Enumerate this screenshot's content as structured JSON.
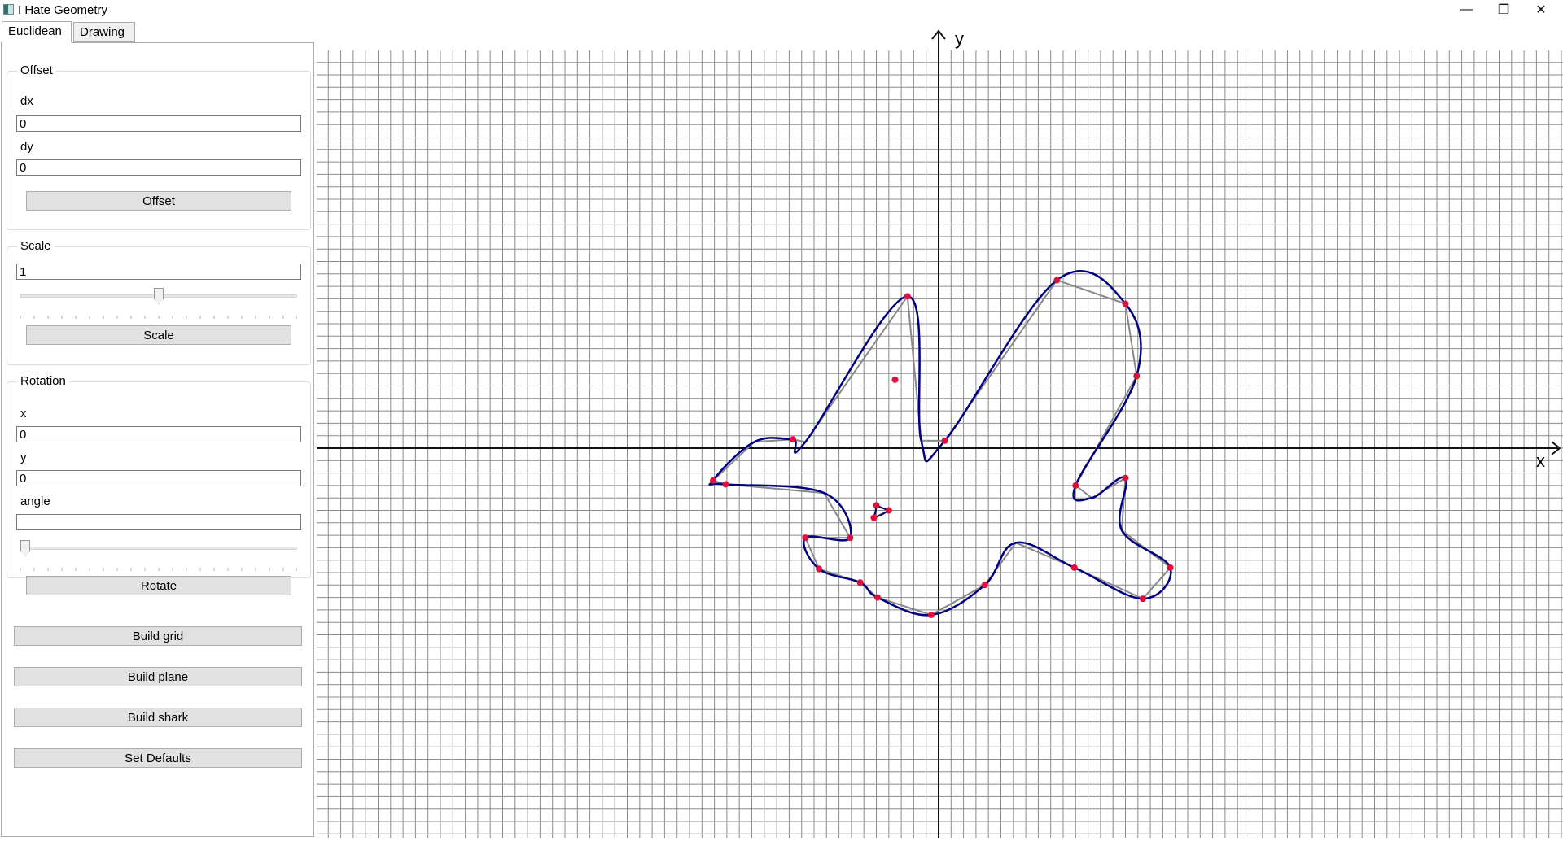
{
  "window": {
    "title": "I Hate Geometry",
    "minimize_glyph": "—",
    "maximize_glyph": "❐",
    "close_glyph": "✕"
  },
  "tabs": [
    {
      "label": "Euclidean",
      "active": true
    },
    {
      "label": "Drawing",
      "active": false
    }
  ],
  "offset": {
    "title": "Offset",
    "dx_label": "dx",
    "dx_value": "0",
    "dy_label": "dy",
    "dy_value": "0",
    "button": "Offset"
  },
  "scale": {
    "title": "Scale",
    "value": "1",
    "slider_fraction": 0.5,
    "button": "Scale"
  },
  "rotation": {
    "title": "Rotation",
    "x_label": "x",
    "x_value": "0",
    "y_label": "y",
    "y_value": "0",
    "angle_label": "angle",
    "angle_value": "",
    "slider_fraction": 0.0,
    "button": "Rotate"
  },
  "actions": {
    "build_grid": "Build grid",
    "build_plane": "Build plane",
    "build_shark": "Build shark",
    "set_defaults": "Set Defaults"
  },
  "canvas": {
    "x_axis_label": "x",
    "y_axis_label": "y",
    "colors": {
      "grid": "#8c8c8c",
      "axis": "#111111",
      "control_polygon": "#888888",
      "curve": "#000080",
      "points": "#e0103a"
    },
    "control_points": [
      [
        -2.5,
        12.2
      ],
      [
        0.5,
        0.6
      ],
      [
        -3.5,
        5.5
      ],
      [
        9.5,
        13.5
      ],
      [
        15.0,
        11.6
      ],
      [
        15.9,
        5.8
      ],
      [
        11.0,
        -3.0
      ],
      [
        15.0,
        -2.4
      ],
      [
        18.6,
        -9.6
      ],
      [
        16.4,
        -12.1
      ],
      [
        10.9,
        -9.6
      ],
      [
        3.7,
        -11.0
      ],
      [
        -0.6,
        -13.4
      ],
      [
        -4.9,
        -12.0
      ],
      [
        -6.3,
        -10.8
      ],
      [
        -9.6,
        -9.7
      ],
      [
        -10.7,
        -7.2
      ],
      [
        -7.1,
        -7.2
      ],
      [
        -17.1,
        -2.9
      ],
      [
        -18.1,
        -2.6
      ],
      [
        -11.7,
        0.7
      ],
      [
        -5.0,
        -4.6
      ],
      [
        -4.0,
        -5.0
      ],
      [
        -5.2,
        -5.6
      ]
    ],
    "control_polygon_path": [
      [
        -10.7,
        0.5
      ],
      [
        -2.5,
        12.2
      ],
      [
        -1.4,
        0.6
      ],
      [
        0.5,
        0.6
      ],
      [
        9.5,
        13.5
      ],
      [
        15.0,
        11.6
      ],
      [
        15.9,
        5.8
      ],
      [
        11.0,
        -3.0
      ],
      [
        12.3,
        -4.0
      ],
      [
        15.0,
        -2.4
      ],
      [
        14.7,
        -6.6
      ],
      [
        18.6,
        -9.6
      ],
      [
        16.4,
        -12.1
      ],
      [
        10.9,
        -9.6
      ],
      [
        6.2,
        -7.6
      ],
      [
        3.7,
        -11.0
      ],
      [
        -0.6,
        -13.4
      ],
      [
        -4.9,
        -12.0
      ],
      [
        -6.3,
        -10.8
      ],
      [
        -9.6,
        -9.7
      ],
      [
        -10.7,
        -7.2
      ],
      [
        -7.1,
        -7.2
      ],
      [
        -9.2,
        -3.6
      ],
      [
        -17.1,
        -2.9
      ],
      [
        -18.1,
        -2.6
      ],
      [
        -14.8,
        0.5
      ],
      [
        -11.7,
        0.7
      ]
    ],
    "small_triangle": [
      [
        -5.0,
        -4.6
      ],
      [
        -4.0,
        -5.0
      ],
      [
        -5.2,
        -5.6
      ]
    ]
  }
}
